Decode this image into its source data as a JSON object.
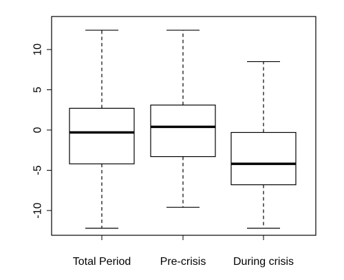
{
  "chart_data": {
    "type": "boxplot",
    "title": "",
    "xlabel": "",
    "ylabel": "",
    "ylim": [
      -13.5,
      13.5
    ],
    "yticks": [
      -10,
      -5,
      0,
      5,
      10
    ],
    "ytick_labels": [
      "-10",
      "-5",
      "0",
      "5",
      "10"
    ],
    "categories": [
      "Total Period",
      "Pre-crisis",
      "During crisis"
    ],
    "boxes": [
      {
        "category": "Total Period",
        "whisker_low": -12.2,
        "q1": -4.2,
        "median": -0.3,
        "q3": 2.7,
        "whisker_high": 12.4
      },
      {
        "category": "Pre-crisis",
        "whisker_low": -9.6,
        "q1": -3.3,
        "median": 0.4,
        "q3": 3.1,
        "whisker_high": 12.4
      },
      {
        "category": "During crisis",
        "whisker_low": -12.2,
        "q1": -6.8,
        "median": -4.2,
        "q3": -0.3,
        "whisker_high": 8.5
      }
    ],
    "grid": false,
    "colors": {
      "stroke": "#000000",
      "background": "#ffffff"
    }
  }
}
